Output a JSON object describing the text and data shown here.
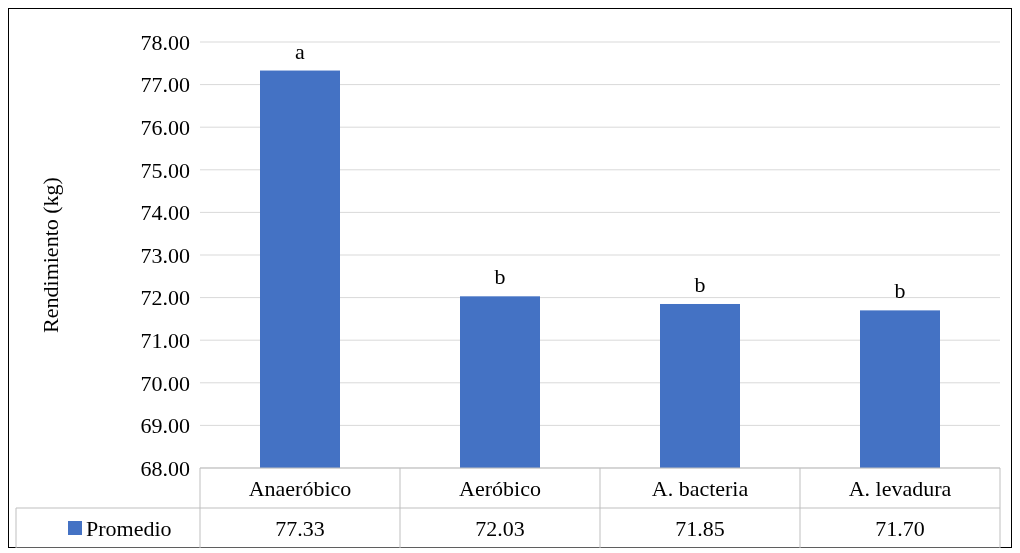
{
  "chart_data": {
    "type": "bar",
    "ylabel": "Rendimiento (kg)",
    "categories": [
      "Anaeróbico",
      "Aeróbico",
      "A. bacteria",
      "A. levadura"
    ],
    "series": [
      {
        "name": "Promedio",
        "color": "#4472c4",
        "values": [
          77.33,
          72.03,
          71.85,
          71.7
        ],
        "value_labels": [
          "77.33",
          "72.03",
          "71.85",
          "71.70"
        ]
      }
    ],
    "ylim": [
      68,
      78
    ],
    "yticks": [
      {
        "value": 68,
        "label": "68.00"
      },
      {
        "value": 69,
        "label": "69.00"
      },
      {
        "value": 70,
        "label": "70.00"
      },
      {
        "value": 71,
        "label": "71.00"
      },
      {
        "value": 72,
        "label": "72.00"
      },
      {
        "value": 73,
        "label": "73.00"
      },
      {
        "value": 74,
        "label": "74.00"
      },
      {
        "value": 75,
        "label": "75.00"
      },
      {
        "value": 76,
        "label": "76.00"
      },
      {
        "value": 77,
        "label": "77.00"
      },
      {
        "value": 78,
        "label": "78.00"
      }
    ],
    "grid": "y",
    "legend": "bottom left",
    "annotations": [
      {
        "text": "a",
        "x": "Anaeróbico",
        "y": 77.33
      },
      {
        "text": "b",
        "x": "Aeróbico",
        "y": 72.03
      },
      {
        "text": "b",
        "x": "A. bacteria",
        "y": 71.85
      },
      {
        "text": "b",
        "x": "A. levadura",
        "y": 71.7
      }
    ]
  }
}
